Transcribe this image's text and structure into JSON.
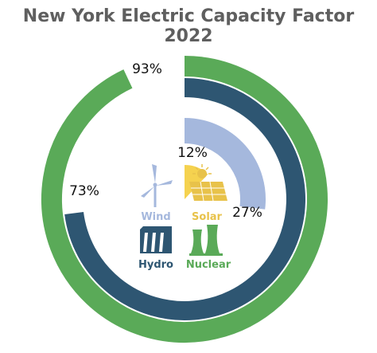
{
  "chart_data": {
    "type": "pie",
    "title": "New York Electric Capacity Factor 2022",
    "unit": "%",
    "series": [
      {
        "name": "Nuclear",
        "value": 93,
        "label": "93%",
        "color": "#5aaa58",
        "icon": "nuclear-cooling-towers-icon"
      },
      {
        "name": "Hydro",
        "value": 73,
        "label": "73%",
        "color": "#2e5672",
        "icon": "hydro-dam-icon"
      },
      {
        "name": "Wind",
        "value": 27,
        "label": "27%",
        "color": "#a5b8dd",
        "icon": "wind-turbine-icon"
      },
      {
        "name": "Solar",
        "value": 12,
        "label": "12%",
        "color": "#f4d046",
        "icon": "solar-panel-icon"
      }
    ],
    "legend": [
      {
        "label": "Wind",
        "color": "#a5b8dd"
      },
      {
        "label": "Solar",
        "color": "#e8c24a"
      },
      {
        "label": "Hydro",
        "color": "#2e5672"
      },
      {
        "label": "Nuclear",
        "color": "#5aaa58"
      }
    ]
  }
}
